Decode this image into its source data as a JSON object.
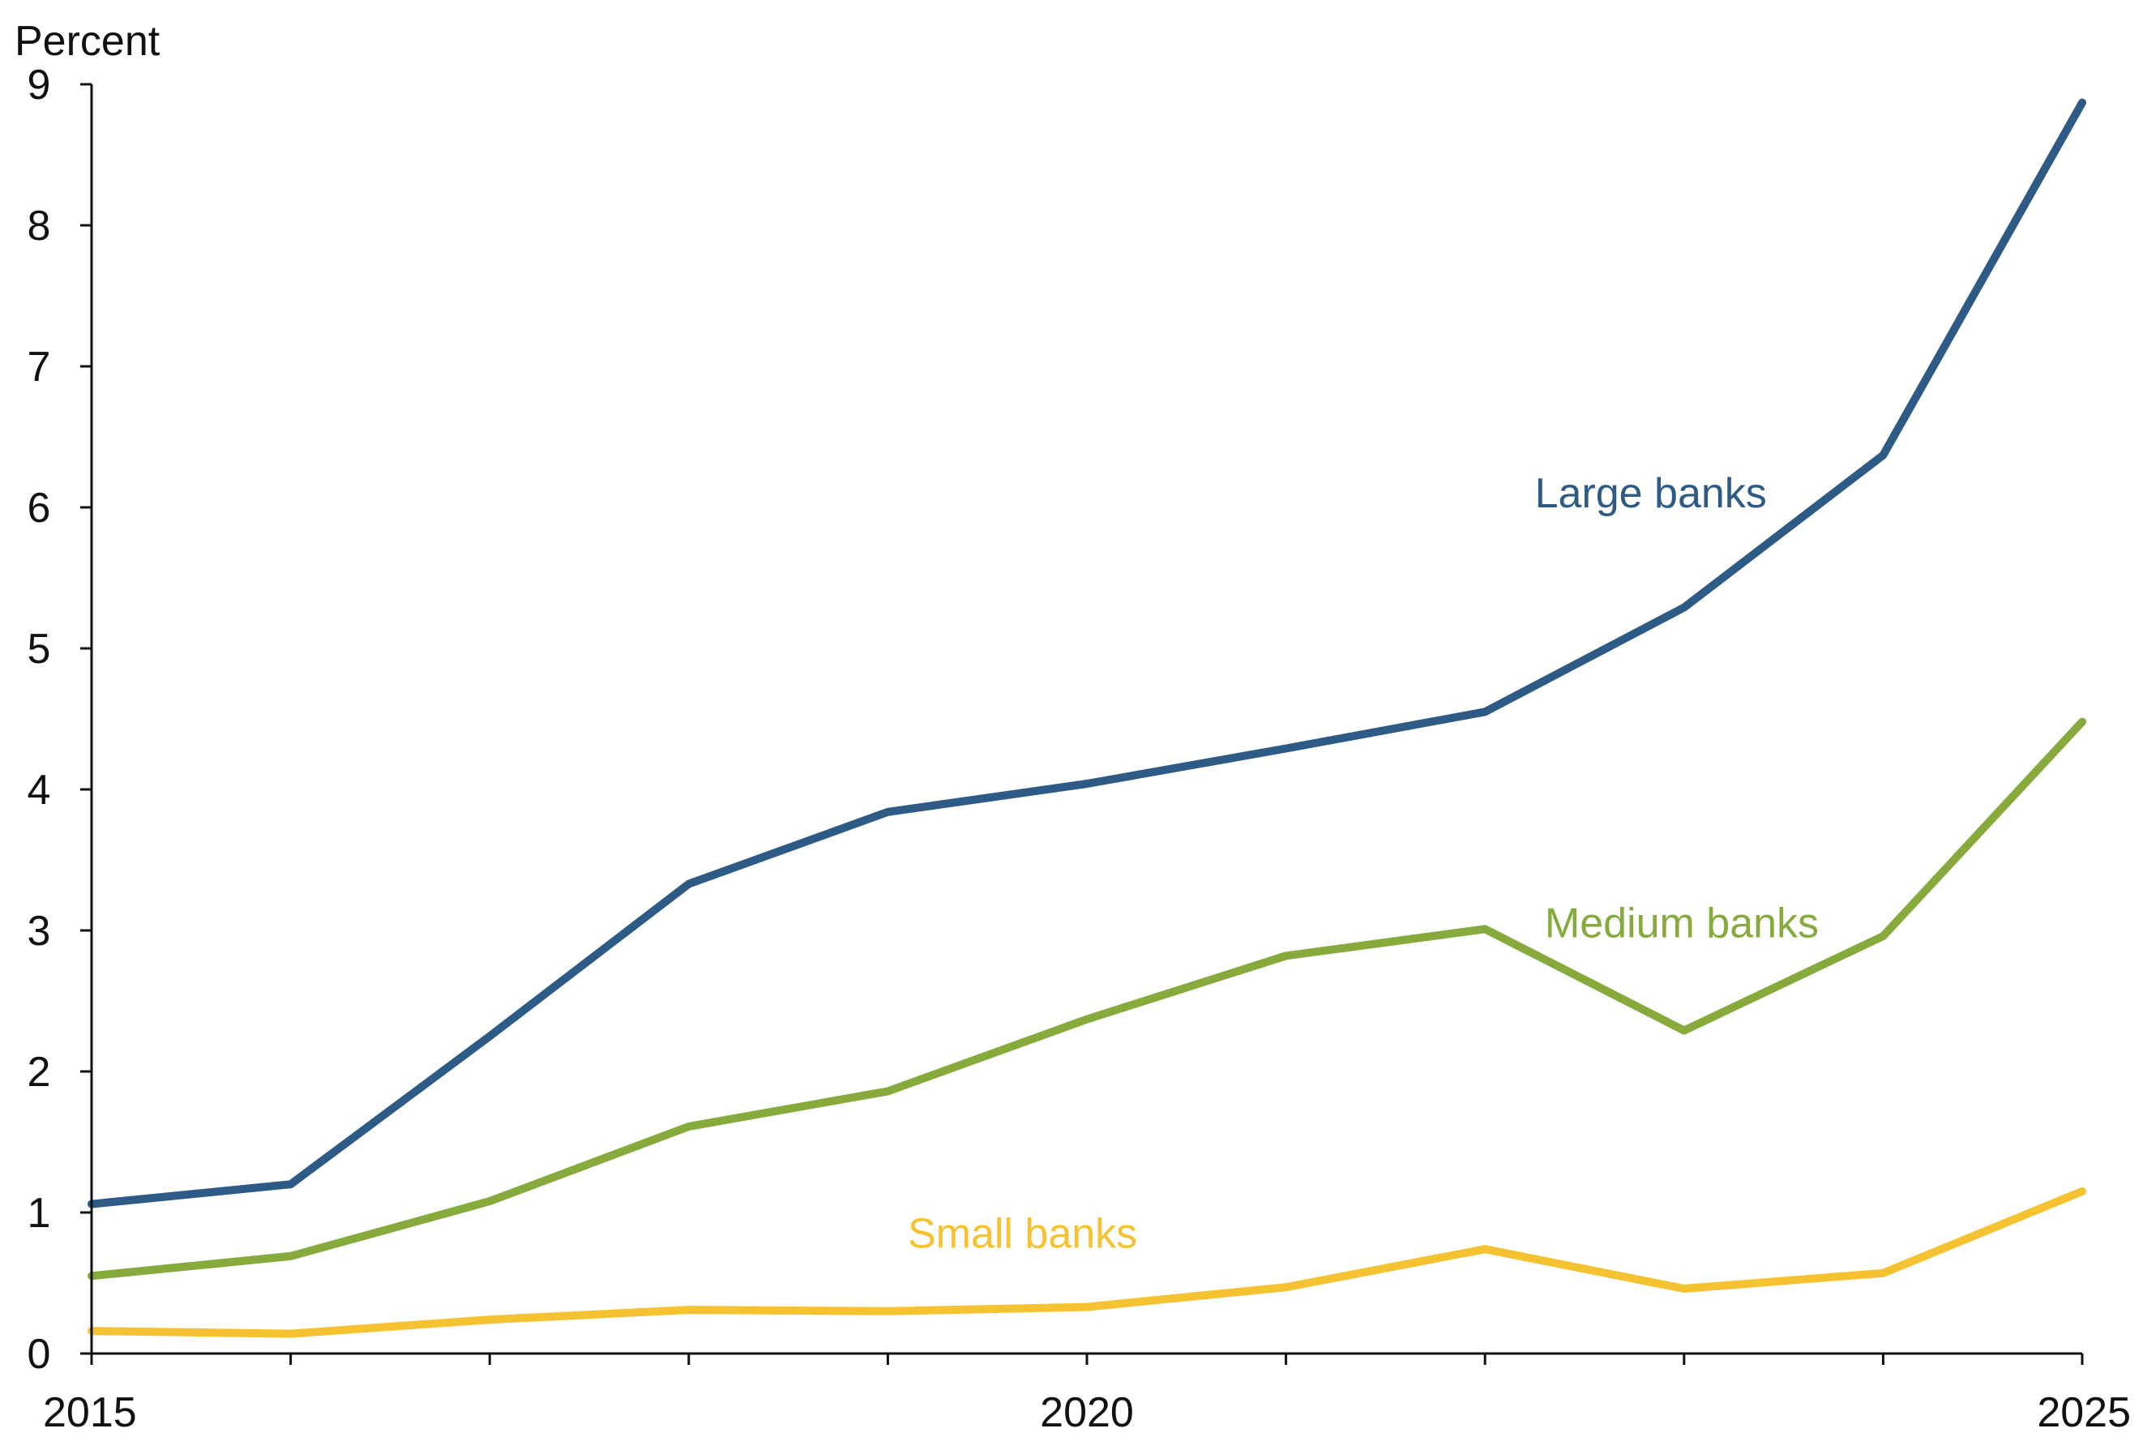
{
  "chart_data": {
    "type": "line",
    "ylabel": "Percent",
    "ylim": [
      0,
      9
    ],
    "yticks": [
      "0",
      "1",
      "2",
      "3",
      "4",
      "5",
      "6",
      "7",
      "8",
      "9"
    ],
    "xlim": [
      2015,
      2025
    ],
    "xticks": [
      2015,
      2016,
      2017,
      2018,
      2019,
      2020,
      2021,
      2022,
      2023,
      2024,
      2025
    ],
    "xtick_labels": [
      "2015",
      "2020",
      "2025"
    ],
    "x": [
      2015,
      2016,
      2017,
      2018,
      2019,
      2020,
      2021,
      2022,
      2023,
      2024,
      2025
    ],
    "grid": false,
    "legend": "inline labels",
    "series": [
      {
        "name": "Large banks",
        "color": "#2e5b86",
        "values": [
          1.06,
          1.2,
          2.25,
          3.33,
          3.84,
          4.04,
          4.29,
          4.55,
          5.29,
          6.37,
          8.87
        ]
      },
      {
        "name": "Medium banks",
        "color": "#86ab3c",
        "values": [
          0.55,
          0.69,
          1.08,
          1.61,
          1.86,
          2.37,
          2.82,
          3.01,
          2.29,
          2.96,
          4.48
        ]
      },
      {
        "name": "Small banks",
        "color": "#f5c232",
        "values": [
          0.16,
          0.14,
          0.24,
          0.31,
          0.3,
          0.33,
          0.47,
          0.74,
          0.46,
          0.57,
          1.15
        ]
      }
    ]
  }
}
